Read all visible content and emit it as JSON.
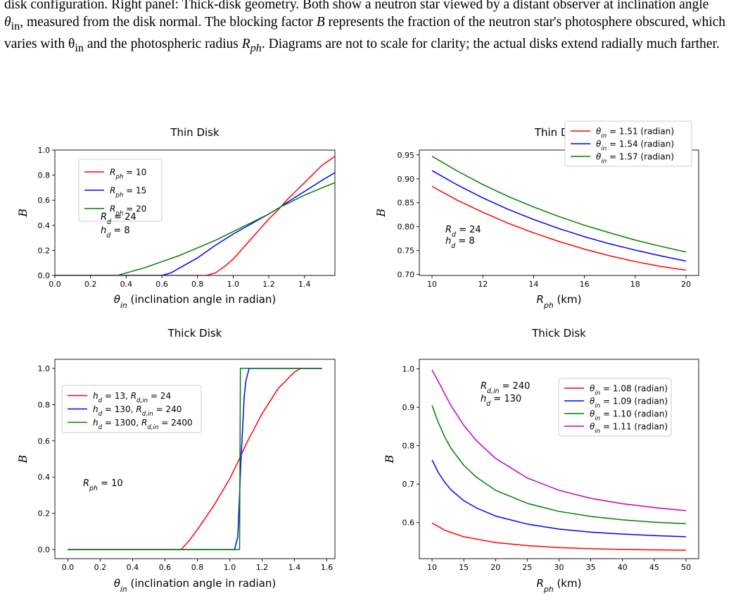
{
  "caption": {
    "line1": "disk configuration. Right panel: Thick-disk geometry. Both show a neutron star viewed by a distant observer at inclination angle",
    "line2a": "θ",
    "line2b": "in",
    "line2c": ", measured from the disk normal. The blocking factor ",
    "line2d": "B",
    "line2e": " represents the fraction of the neutron star's photosphere obscured, which",
    "line3a": "varies with θ",
    "line3b": "in",
    "line3c": " and the photospheric radius ",
    "line3d": "R",
    "line3e": "ph",
    "line3f": ". Diagrams are not to scale for clarity; the actual disks extend radially much farther."
  },
  "chart_data": [
    {
      "type": "line",
      "title": "Thin Disk",
      "xlabel": "θin (inclination angle in radian)",
      "ylabel": "B",
      "xlim": [
        0,
        1.5708
      ],
      "ylim": [
        0,
        1.0
      ],
      "xticks": [
        "0.0",
        "0.2",
        "0.4",
        "0.6",
        "0.8",
        "1.0",
        "1.2",
        "1.4"
      ],
      "yticks": [
        "0.0",
        "0.2",
        "0.4",
        "0.6",
        "0.8",
        "1.0"
      ],
      "legend_position": "upper-left",
      "annotation": [
        "Rd = 24",
        "hd = 8"
      ],
      "series": [
        {
          "name": "Rph = 10",
          "color": "#ff0000",
          "x": [
            0,
            0.8,
            0.85,
            0.9,
            0.95,
            1.0,
            1.05,
            1.1,
            1.15,
            1.2,
            1.25,
            1.3,
            1.35,
            1.4,
            1.45,
            1.5,
            1.5708
          ],
          "y": [
            0,
            0,
            0,
            0.02,
            0.07,
            0.13,
            0.21,
            0.29,
            0.37,
            0.45,
            0.52,
            0.6,
            0.67,
            0.74,
            0.81,
            0.88,
            0.95
          ]
        },
        {
          "name": "Rph = 15",
          "color": "#0000ff",
          "x": [
            0,
            0.6,
            0.65,
            0.7,
            0.8,
            0.9,
            1.0,
            1.1,
            1.2,
            1.27,
            1.3,
            1.4,
            1.5,
            1.5708
          ],
          "y": [
            0,
            0,
            0.02,
            0.06,
            0.14,
            0.24,
            0.33,
            0.41,
            0.49,
            0.55,
            0.58,
            0.67,
            0.76,
            0.82
          ]
        },
        {
          "name": "Rph = 20",
          "color": "#008000",
          "x": [
            0,
            0.35,
            0.4,
            0.5,
            0.6,
            0.7,
            0.8,
            0.9,
            1.0,
            1.1,
            1.2,
            1.27,
            1.3,
            1.4,
            1.5,
            1.5708
          ],
          "y": [
            0,
            0,
            0.02,
            0.06,
            0.11,
            0.16,
            0.22,
            0.28,
            0.35,
            0.42,
            0.49,
            0.55,
            0.57,
            0.64,
            0.7,
            0.74
          ]
        }
      ]
    },
    {
      "type": "line",
      "title": "Thin Disk",
      "xlabel": "Rph (km)",
      "ylabel": "B",
      "xlim": [
        9.5,
        20.5
      ],
      "ylim": [
        0.698,
        0.96
      ],
      "xticks": [
        "10",
        "12",
        "14",
        "16",
        "18",
        "20"
      ],
      "yticks": [
        "0.70",
        "0.75",
        "0.80",
        "0.85",
        "0.90",
        "0.95"
      ],
      "legend_position": "upper-right",
      "annotation": [
        "Rd = 24",
        "hd = 8"
      ],
      "series": [
        {
          "name": "θin = 1.51 (radian)",
          "color": "#ff0000",
          "x": [
            10,
            11,
            12,
            13,
            14,
            15,
            16,
            17,
            18,
            19,
            20
          ],
          "y": [
            0.884,
            0.855,
            0.83,
            0.807,
            0.787,
            0.769,
            0.753,
            0.739,
            0.727,
            0.717,
            0.709
          ]
        },
        {
          "name": "θin = 1.54 (radian)",
          "color": "#0000ff",
          "x": [
            10,
            11,
            12,
            13,
            14,
            15,
            16,
            17,
            18,
            19,
            20
          ],
          "y": [
            0.917,
            0.887,
            0.86,
            0.836,
            0.815,
            0.796,
            0.779,
            0.764,
            0.751,
            0.739,
            0.728
          ]
        },
        {
          "name": "θin = 1.57 (radian)",
          "color": "#008000",
          "x": [
            10,
            11,
            12,
            13,
            14,
            15,
            16,
            17,
            18,
            19,
            20
          ],
          "y": [
            0.947,
            0.916,
            0.888,
            0.863,
            0.841,
            0.821,
            0.803,
            0.787,
            0.772,
            0.759,
            0.747
          ]
        }
      ]
    },
    {
      "type": "line",
      "title": "Thick Disk",
      "xlabel": "θin (inclination angle in radian)",
      "ylabel": "B",
      "xlim": [
        -0.08,
        1.65
      ],
      "ylim": [
        -0.05,
        1.05
      ],
      "xticks": [
        "0.0",
        "0.2",
        "0.4",
        "0.6",
        "0.8",
        "1.0",
        "1.2",
        "1.4",
        "1.6"
      ],
      "yticks": [
        "0.0",
        "0.2",
        "0.4",
        "0.6",
        "0.8",
        "1.0"
      ],
      "legend_position": "upper-left",
      "annotation": [
        "Rph = 10"
      ],
      "series": [
        {
          "name": "hd = 13, Rd,in = 24",
          "color": "#ff0000",
          "x": [
            0,
            0.7,
            0.75,
            0.8,
            0.9,
            1.0,
            1.07,
            1.1,
            1.2,
            1.3,
            1.4,
            1.44,
            1.5708
          ],
          "y": [
            0,
            0,
            0.05,
            0.11,
            0.24,
            0.39,
            0.52,
            0.58,
            0.75,
            0.89,
            0.98,
            1.0,
            1.0
          ]
        },
        {
          "name": "hd = 130, Rd,in = 240",
          "color": "#0000ff",
          "x": [
            0,
            1.03,
            1.05,
            1.07,
            1.09,
            1.1,
            1.12,
            1.5708
          ],
          "y": [
            0,
            0,
            0.07,
            0.5,
            0.85,
            0.93,
            1.0,
            1.0
          ]
        },
        {
          "name": "hd = 1300, Rd,in = 2400",
          "color": "#008000",
          "x": [
            0,
            1.061,
            1.066,
            1.5708
          ],
          "y": [
            0,
            0,
            1.0,
            1.0
          ]
        }
      ]
    },
    {
      "type": "line",
      "title": "Thick Disk",
      "xlabel": "Rph (km)",
      "ylabel": "B",
      "xlim": [
        8,
        52
      ],
      "ylim": [
        0.506,
        1.025
      ],
      "xticks": [
        "10",
        "15",
        "20",
        "25",
        "30",
        "35",
        "40",
        "45",
        "50"
      ],
      "yticks": [
        "0.6",
        "0.7",
        "0.8",
        "0.9",
        "1.0"
      ],
      "legend_position": "upper-right",
      "annotation": [
        "Rd,in = 240",
        "hd = 130"
      ],
      "series": [
        {
          "name": "θin = 1.08 (radian)",
          "color": "#ff0000",
          "x": [
            10,
            12,
            15,
            20,
            25,
            30,
            35,
            40,
            45,
            50
          ],
          "y": [
            0.599,
            0.58,
            0.563,
            0.548,
            0.54,
            0.535,
            0.532,
            0.53,
            0.529,
            0.528
          ]
        },
        {
          "name": "θin = 1.09 (radian)",
          "color": "#0000ff",
          "x": [
            10,
            11,
            12,
            13,
            15,
            17,
            20,
            25,
            30,
            35,
            40,
            45,
            50
          ],
          "y": [
            0.763,
            0.73,
            0.705,
            0.685,
            0.657,
            0.638,
            0.617,
            0.596,
            0.583,
            0.575,
            0.57,
            0.566,
            0.563
          ]
        },
        {
          "name": "θin = 1.10 (radian)",
          "color": "#008000",
          "x": [
            10,
            11,
            12,
            13,
            15,
            17,
            20,
            25,
            30,
            35,
            40,
            45,
            50
          ],
          "y": [
            0.905,
            0.86,
            0.823,
            0.793,
            0.749,
            0.718,
            0.684,
            0.65,
            0.629,
            0.616,
            0.607,
            0.601,
            0.597
          ]
        },
        {
          "name": "θin = 1.11 (radian)",
          "color": "#c000c0",
          "x": [
            10,
            11,
            12,
            13,
            15,
            17,
            20,
            25,
            30,
            35,
            40,
            45,
            50
          ],
          "y": [
            0.997,
            0.967,
            0.935,
            0.904,
            0.853,
            0.813,
            0.767,
            0.716,
            0.684,
            0.663,
            0.649,
            0.639,
            0.631
          ]
        }
      ]
    }
  ]
}
